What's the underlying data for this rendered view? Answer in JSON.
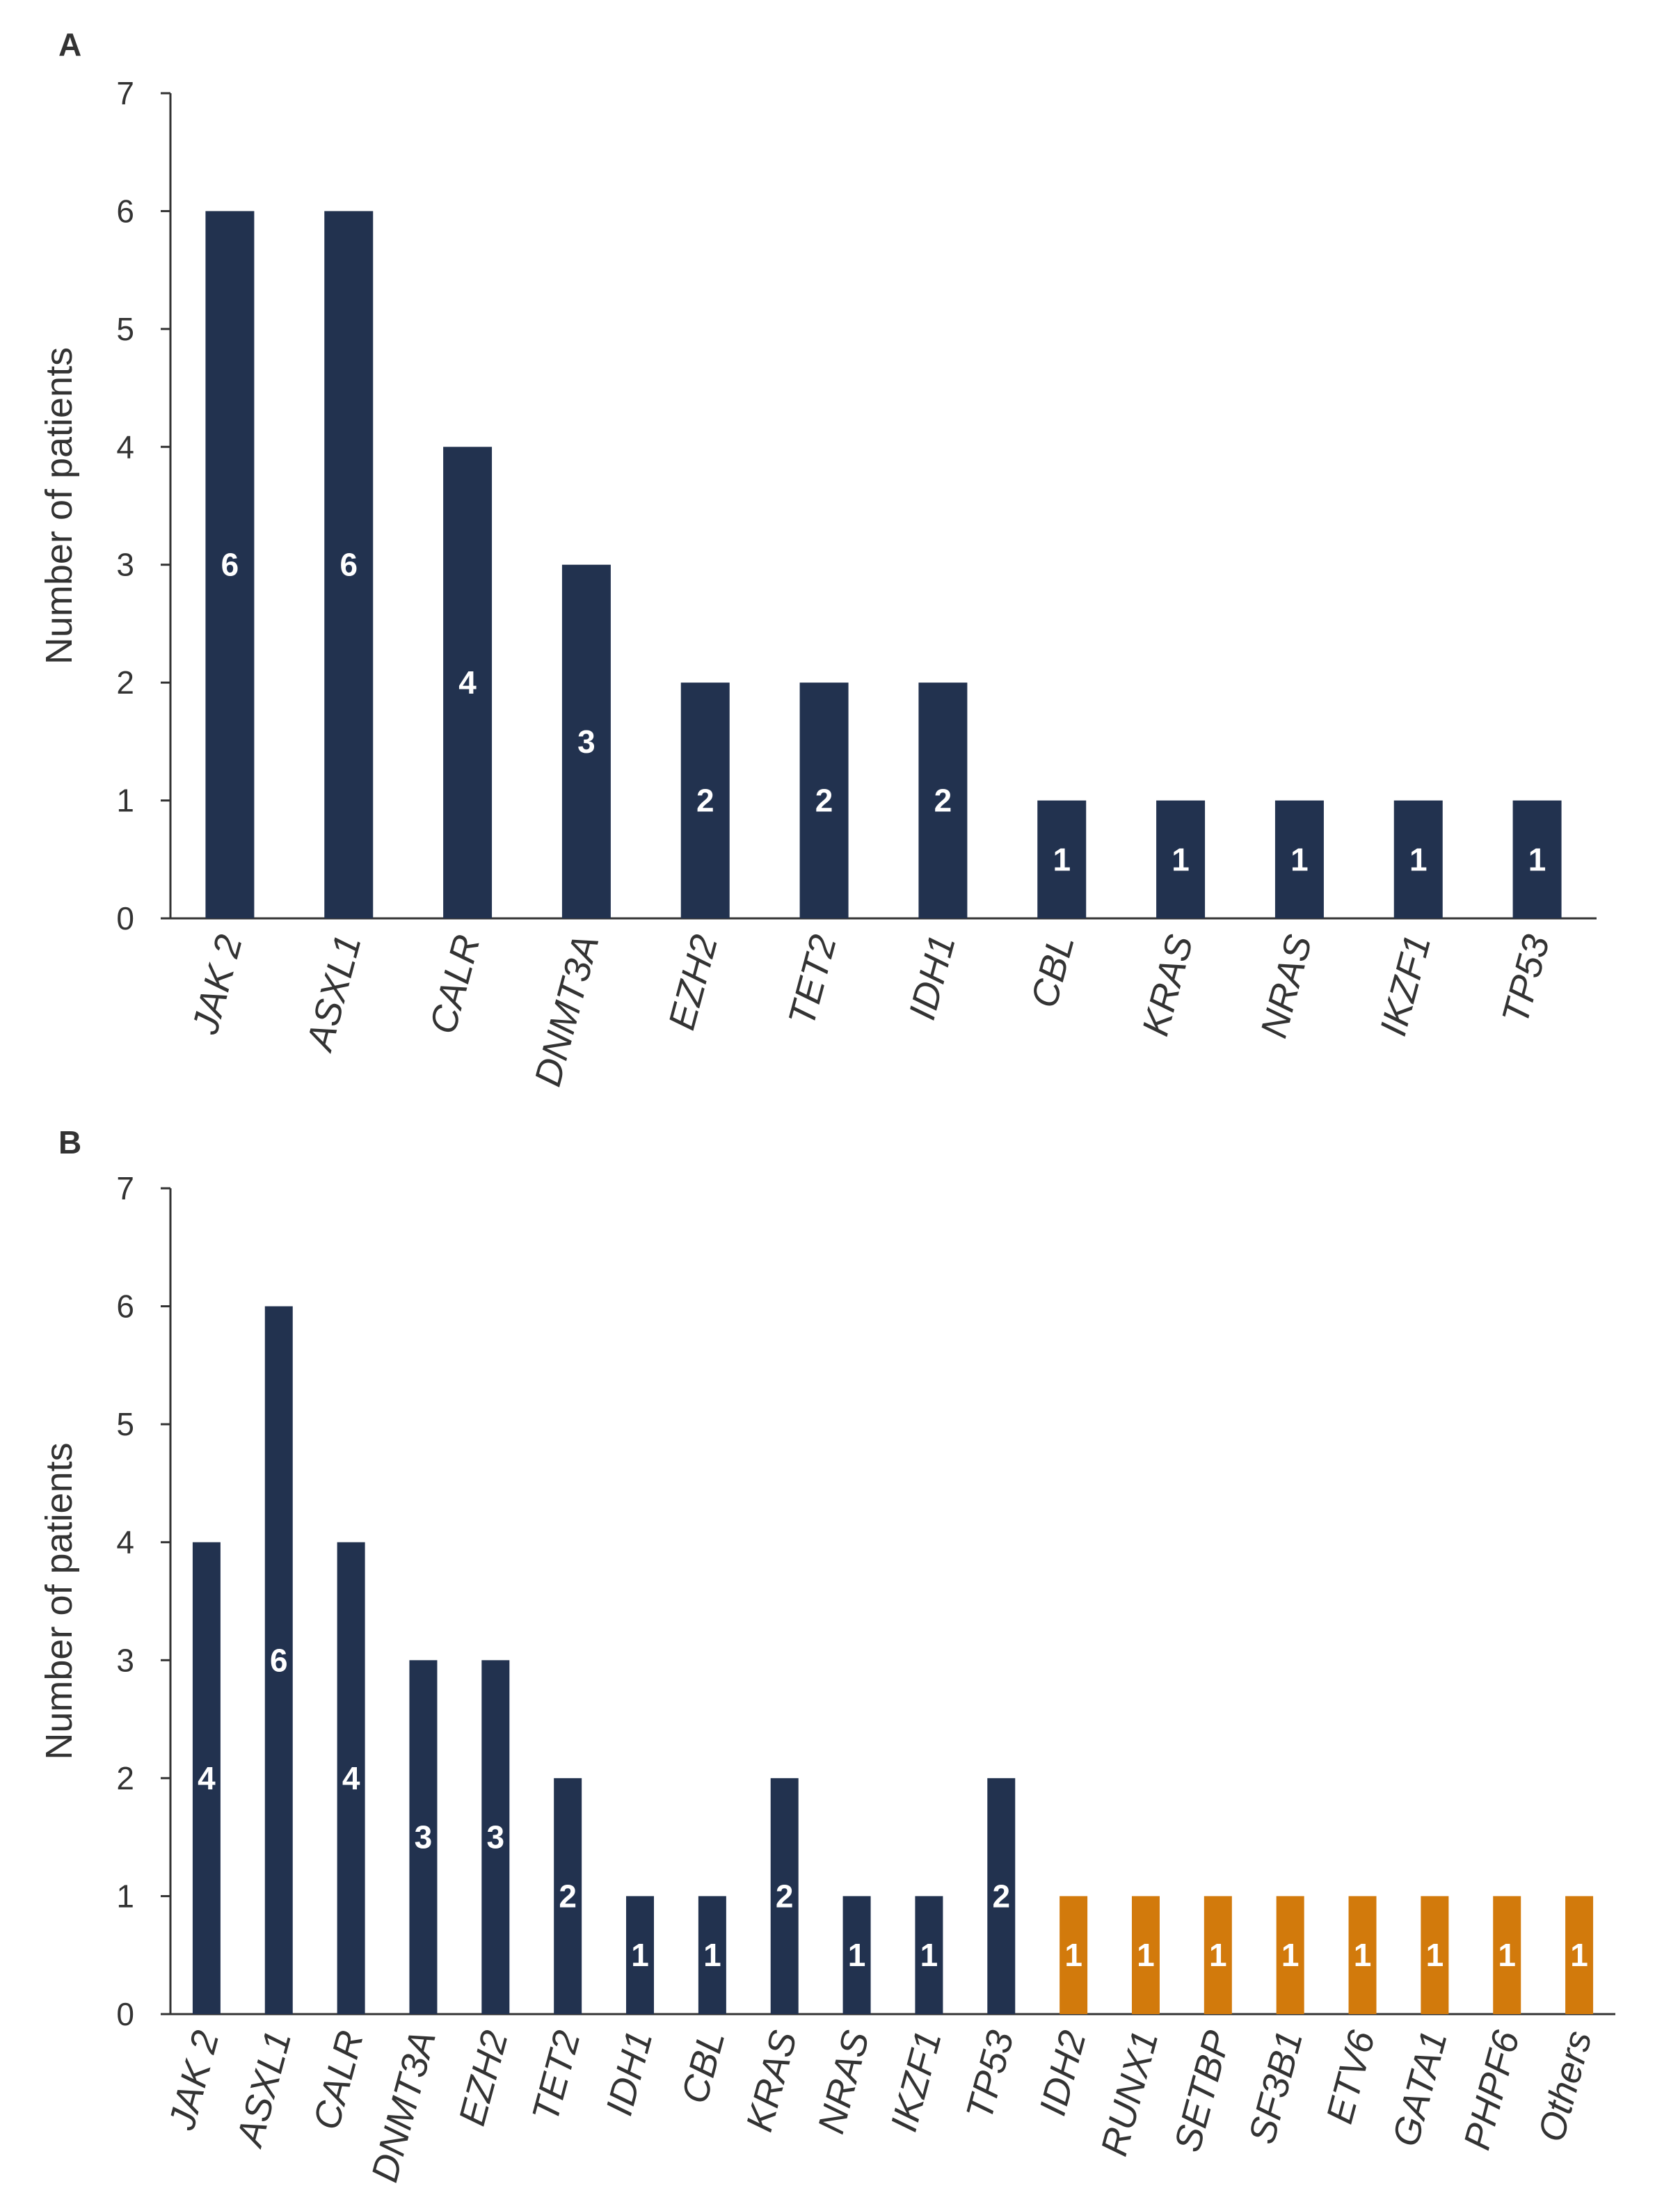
{
  "chart_data": [
    {
      "panel": "A",
      "type": "bar",
      "ylabel": "Number of patients",
      "ylim": [
        0,
        7
      ],
      "yticks": [
        "0",
        "1",
        "2",
        "3",
        "4",
        "5",
        "6",
        "7"
      ],
      "categories": [
        "JAK 2",
        "ASXL1",
        "CALR",
        "DNMT3A",
        "EZH2",
        "TET2",
        "IDH1",
        "CBL",
        "KRAS",
        "NRAS",
        "IKZF1",
        "TP53"
      ],
      "values": [
        6,
        6,
        4,
        3,
        2,
        2,
        2,
        1,
        1,
        1,
        1,
        1
      ],
      "bar_colors": [
        "#22324f",
        "#22324f",
        "#22324f",
        "#22324f",
        "#22324f",
        "#22324f",
        "#22324f",
        "#22324f",
        "#22324f",
        "#22324f",
        "#22324f",
        "#22324f"
      ],
      "grid": false,
      "legend": "none"
    },
    {
      "panel": "B",
      "type": "bar",
      "ylabel": "Number of patients",
      "ylim": [
        0,
        7
      ],
      "yticks": [
        "0",
        "1",
        "2",
        "3",
        "4",
        "5",
        "6",
        "7"
      ],
      "categories": [
        "JAK 2",
        "ASXL1",
        "CALR",
        "DNMT3A",
        "EZH2",
        "TET2",
        "IDH1",
        "CBL",
        "KRAS",
        "NRAS",
        "IKZF1",
        "TP53",
        "IDH2",
        "RUNX1",
        "SETBP",
        "SF3B1",
        "ETV6",
        "GATA1",
        "PHPF6",
        "Others"
      ],
      "values": [
        4,
        6,
        4,
        3,
        3,
        2,
        1,
        1,
        2,
        1,
        1,
        2,
        1,
        1,
        1,
        1,
        1,
        1,
        1,
        1
      ],
      "bar_colors": [
        "#22324f",
        "#22324f",
        "#22324f",
        "#22324f",
        "#22324f",
        "#22324f",
        "#22324f",
        "#22324f",
        "#22324f",
        "#22324f",
        "#22324f",
        "#22324f",
        "#d27a0c",
        "#d27a0c",
        "#d27a0c",
        "#d27a0c",
        "#d27a0c",
        "#d27a0c",
        "#d27a0c",
        "#d27a0c"
      ],
      "grid": false,
      "legend": "none"
    }
  ],
  "colors": {
    "axis": "#333333",
    "bar_primary": "#22324f",
    "bar_secondary": "#d27a0c",
    "label_text": "#ffffff"
  }
}
